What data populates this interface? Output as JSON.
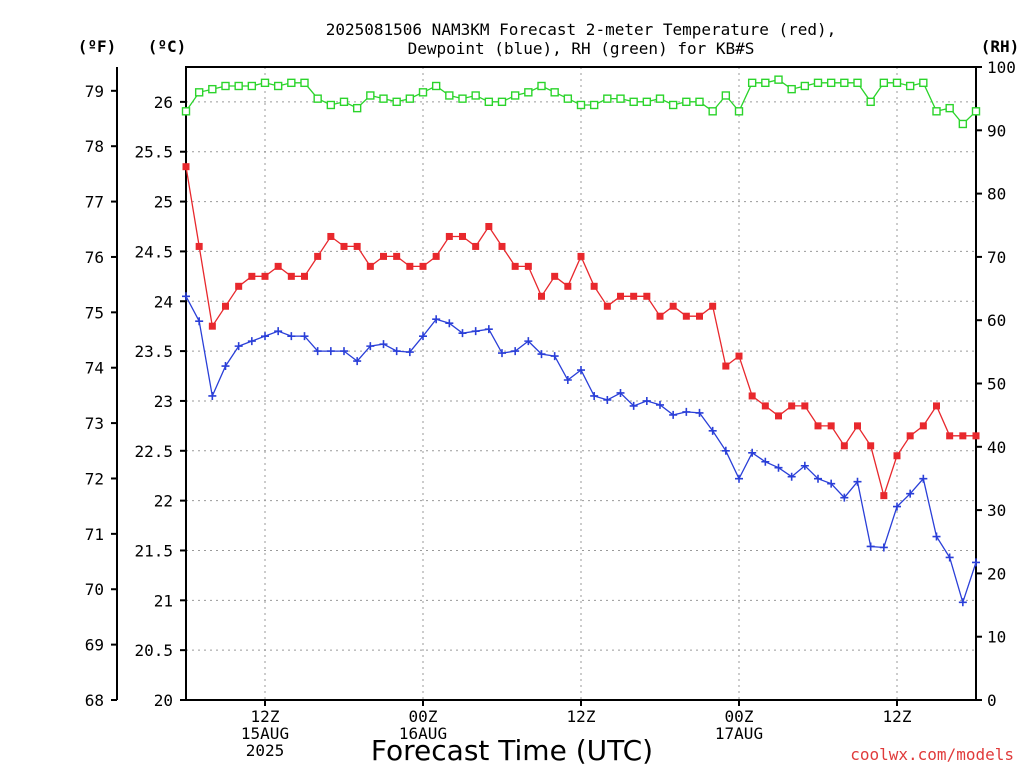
{
  "title_line1": "2025081506 NAM3KM Forecast 2-meter Temperature (red),",
  "title_line2": "Dewpoint (blue), RH (green) for KB#S",
  "unit_f": "(ºF)",
  "unit_c": "(ºC)",
  "unit_rh": "(RH)",
  "xlabel": "Forecast Time (UTC)",
  "credit": "coolwx.com/models",
  "chart_data": {
    "type": "line",
    "title": "2025081506 NAM3KM Forecast 2-meter Temperature (red), Dewpoint (blue), RH (green) for KB#S",
    "xlabel": "Forecast Time (UTC)",
    "x": [
      0,
      1,
      2,
      3,
      4,
      5,
      6,
      7,
      8,
      9,
      10,
      11,
      12,
      13,
      14,
      15,
      16,
      17,
      18,
      19,
      20,
      21,
      22,
      23,
      24,
      25,
      26,
      27,
      28,
      29,
      30,
      31,
      32,
      33,
      34,
      35,
      36,
      37,
      38,
      39,
      40,
      41,
      42,
      43,
      44,
      45,
      46,
      47,
      48,
      49,
      50,
      51,
      52,
      53,
      54,
      55,
      56,
      57,
      58,
      59,
      60
    ],
    "x_unit": "forecast hour from 2025-08-15 06Z",
    "x_ticks": [
      {
        "hour": 6,
        "labels": [
          "12Z",
          "15AUG",
          "2025"
        ]
      },
      {
        "hour": 18,
        "labels": [
          "00Z",
          "16AUG"
        ]
      },
      {
        "hour": 30,
        "labels": [
          "12Z"
        ]
      },
      {
        "hour": 42,
        "labels": [
          "00Z",
          "17AUG"
        ]
      },
      {
        "hour": 54,
        "labels": [
          "12Z"
        ]
      }
    ],
    "xlim": [
      0,
      60
    ],
    "y_left_c": {
      "label": "(ºC)",
      "lim": [
        20,
        26.35
      ],
      "ticks": [
        20,
        20.5,
        21,
        21.5,
        22,
        22.5,
        23,
        23.5,
        24,
        24.5,
        25,
        25.5,
        26
      ]
    },
    "y_left_f": {
      "label": "(ºF)",
      "lim": [
        68,
        79.43
      ],
      "ticks": [
        68,
        69,
        70,
        71,
        72,
        73,
        74,
        75,
        76,
        77,
        78,
        79
      ]
    },
    "y_right_rh": {
      "label": "(RH)",
      "lim": [
        0,
        100
      ],
      "ticks": [
        0,
        10,
        20,
        30,
        40,
        50,
        60,
        70,
        80,
        90,
        100
      ]
    },
    "grid": true,
    "series": [
      {
        "name": "Temperature",
        "color": "#e8282d",
        "axis": "C",
        "marker": "filled-square",
        "values": [
          25.35,
          24.55,
          23.75,
          23.95,
          24.15,
          24.25,
          24.25,
          24.35,
          24.25,
          24.25,
          24.45,
          24.65,
          24.55,
          24.55,
          24.35,
          24.45,
          24.45,
          24.35,
          24.35,
          24.45,
          24.65,
          24.65,
          24.55,
          24.75,
          24.55,
          24.35,
          24.35,
          24.05,
          24.25,
          24.15,
          24.45,
          24.15,
          23.95,
          24.05,
          24.05,
          24.05,
          23.85,
          23.95,
          23.85,
          23.85,
          23.95,
          23.35,
          23.45,
          23.05,
          22.95,
          22.85,
          22.95,
          22.95,
          22.75,
          22.75,
          22.55,
          22.75,
          22.55,
          22.05,
          22.45,
          22.65,
          22.75,
          22.95,
          22.65,
          22.65,
          22.65
        ]
      },
      {
        "name": "Dewpoint",
        "color": "#2a3fd8",
        "axis": "C",
        "marker": "plus",
        "values": [
          24.05,
          23.8,
          23.05,
          23.35,
          23.55,
          23.6,
          23.65,
          23.7,
          23.65,
          23.65,
          23.5,
          23.5,
          23.5,
          23.4,
          23.55,
          23.57,
          23.5,
          23.49,
          23.65,
          23.82,
          23.78,
          23.68,
          23.7,
          23.72,
          23.48,
          23.5,
          23.6,
          23.47,
          23.45,
          23.21,
          23.31,
          23.05,
          23.01,
          23.08,
          22.95,
          23.0,
          22.96,
          22.86,
          22.89,
          22.88,
          22.7,
          22.5,
          22.22,
          22.48,
          22.39,
          22.33,
          22.24,
          22.35,
          22.22,
          22.17,
          22.03,
          22.19,
          21.54,
          21.53,
          21.94,
          22.07,
          22.22,
          21.64,
          21.43,
          20.98,
          21.38
        ]
      },
      {
        "name": "RH",
        "color": "#2bd42b",
        "axis": "RH",
        "marker": "open-square",
        "values": [
          93,
          96,
          96.5,
          97,
          97,
          97,
          97.5,
          97,
          97.5,
          97.5,
          95,
          94,
          94.5,
          93.5,
          95.5,
          95,
          94.5,
          95,
          96,
          97,
          95.5,
          95,
          95.5,
          94.5,
          94.5,
          95.5,
          96,
          97,
          96,
          95,
          94,
          94,
          95,
          95,
          94.5,
          94.5,
          95,
          94,
          94.5,
          94.5,
          93,
          95.5,
          93,
          97.5,
          97.5,
          98,
          96.5,
          97,
          97.5,
          97.5,
          97.5,
          97.5,
          94.5,
          97.5,
          97.5,
          97,
          97.5,
          93,
          93.5,
          91,
          93
        ]
      }
    ]
  }
}
